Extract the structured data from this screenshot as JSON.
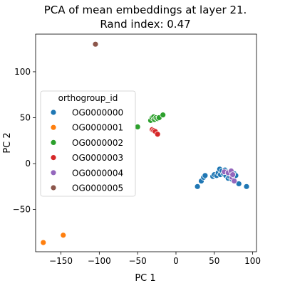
{
  "colors": {
    "OG0000000": "#1f77b4",
    "OG0000001": "#ff7f0e",
    "OG0000002": "#2ca02c",
    "OG0000003": "#d62728",
    "OG0000004": "#9467bd",
    "OG0000005": "#8c564b"
  },
  "chart_data": {
    "type": "scatter",
    "title": "PCA of mean embeddings at layer 21.",
    "subtitle": "Rand index: 0.47",
    "xlabel": "PC 1",
    "ylabel": "PC 2",
    "xlim": [
      -183,
      105
    ],
    "ylim": [
      -96,
      141
    ],
    "xticks": [
      {
        "value": -150,
        "label": "−150"
      },
      {
        "value": -100,
        "label": "−100"
      },
      {
        "value": -50,
        "label": "−50"
      },
      {
        "value": 0,
        "label": "0"
      },
      {
        "value": 50,
        "label": "50"
      },
      {
        "value": 100,
        "label": "100"
      }
    ],
    "yticks": [
      {
        "value": -50,
        "label": "−50"
      },
      {
        "value": 0,
        "label": "0"
      },
      {
        "value": 50,
        "label": "50"
      },
      {
        "value": 100,
        "label": "100"
      }
    ],
    "grid": false,
    "legend": {
      "title": "orthogroup_id",
      "placement": "center-left"
    },
    "series": [
      {
        "name": "OG0000000",
        "points": [
          [
            28,
            -25
          ],
          [
            33,
            -19
          ],
          [
            36,
            -15
          ],
          [
            38,
            -13
          ],
          [
            48,
            -14
          ],
          [
            50,
            -12
          ],
          [
            53,
            -13
          ],
          [
            55,
            -10
          ],
          [
            57,
            -6
          ],
          [
            58,
            -12
          ],
          [
            60,
            -8
          ],
          [
            62,
            -11
          ],
          [
            64,
            -7
          ],
          [
            65,
            -13
          ],
          [
            66,
            -9
          ],
          [
            68,
            -16
          ],
          [
            70,
            -14
          ],
          [
            71,
            -10
          ],
          [
            72,
            -12
          ],
          [
            73,
            -17
          ],
          [
            75,
            -15
          ],
          [
            76,
            -11
          ],
          [
            78,
            -13
          ],
          [
            82,
            -22
          ],
          [
            92,
            -25
          ]
        ]
      },
      {
        "name": "OG0000001",
        "points": [
          [
            -173,
            -86
          ],
          [
            -147,
            -78
          ]
        ]
      },
      {
        "name": "OG0000002",
        "points": [
          [
            -50,
            40
          ],
          [
            -33,
            47
          ],
          [
            -31,
            50
          ],
          [
            -29,
            51
          ],
          [
            -28,
            48
          ],
          [
            -26,
            50
          ],
          [
            -24,
            49
          ],
          [
            -22,
            50
          ],
          [
            -17,
            53
          ]
        ]
      },
      {
        "name": "OG0000003",
        "points": [
          [
            -31,
            37
          ],
          [
            -29,
            36
          ],
          [
            -27,
            35
          ],
          [
            -24,
            32
          ]
        ]
      },
      {
        "name": "OG0000004",
        "points": [
          [
            63,
            -9
          ],
          [
            68,
            -10
          ],
          [
            72,
            -8
          ],
          [
            73,
            -15
          ],
          [
            74,
            -12
          ],
          [
            76,
            -19
          ]
        ]
      },
      {
        "name": "OG0000005",
        "points": [
          [
            -105,
            130
          ]
        ]
      }
    ]
  }
}
